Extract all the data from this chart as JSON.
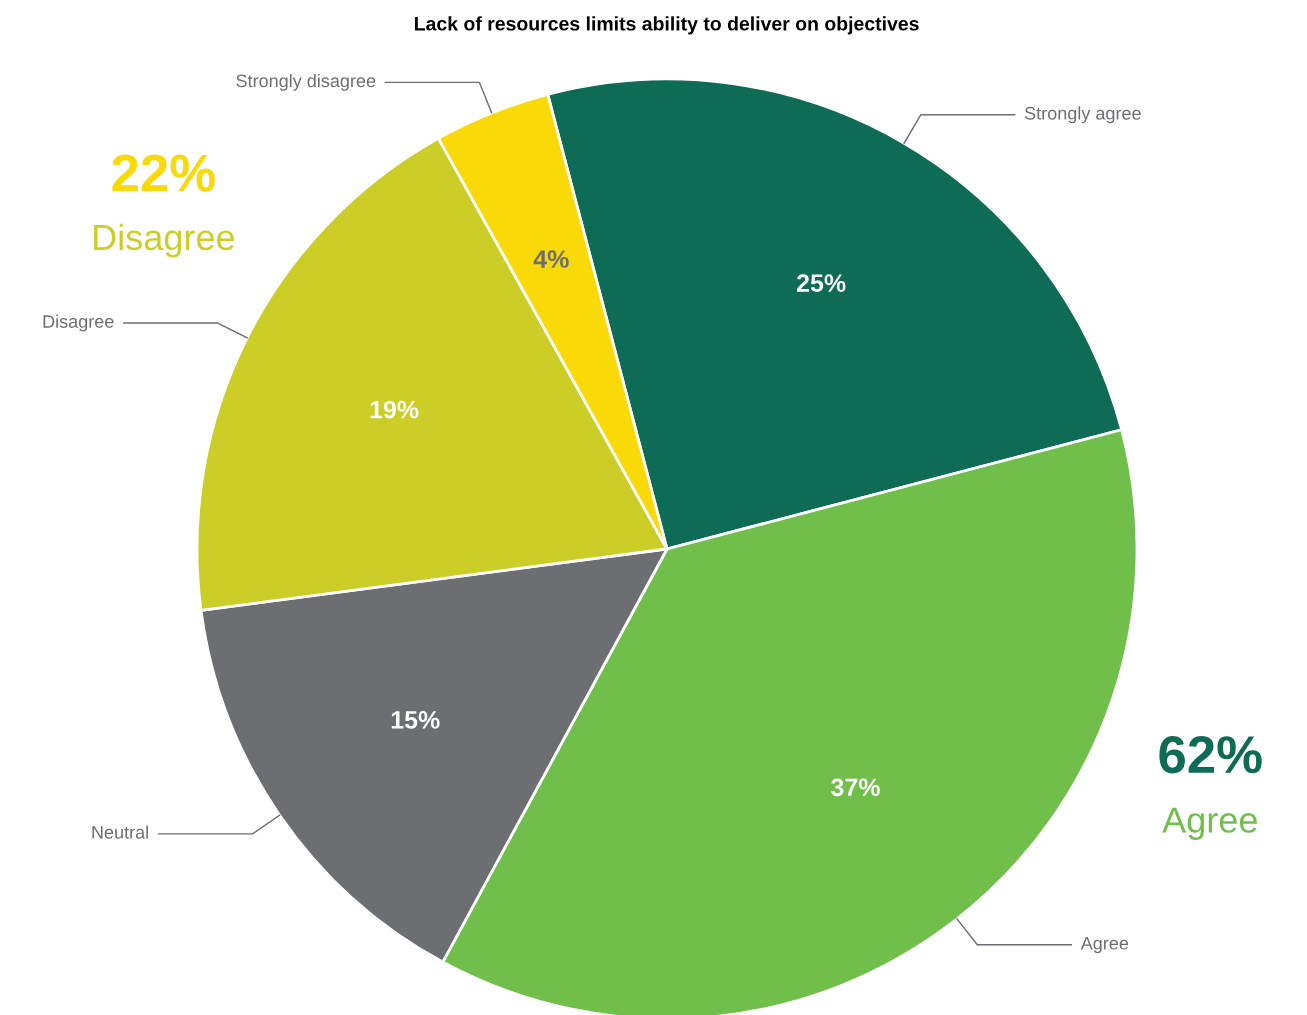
{
  "chart_data": {
    "type": "pie",
    "title": "Lack of resources limits ability to deliver on objectives",
    "categories": [
      "Strongly agree",
      "Agree",
      "Neutral",
      "Disagree",
      "Strongly disagree"
    ],
    "values": [
      25,
      37,
      15,
      19,
      4
    ],
    "colors": [
      "#0e6b55",
      "#71bf4b",
      "#6d6e71",
      "#cdcd28",
      "#f9d908"
    ],
    "value_labels": [
      "25%",
      "37%",
      "15%",
      "19%",
      "4%"
    ],
    "annotations": [
      "62%",
      "Agree",
      "22%",
      "Disagree"
    ]
  }
}
